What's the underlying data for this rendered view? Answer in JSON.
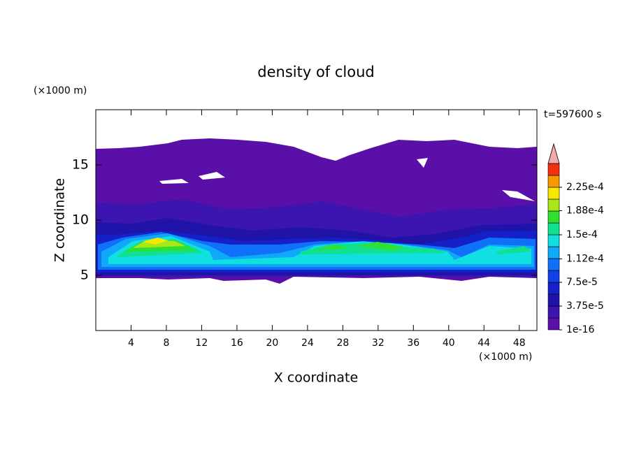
{
  "chart_data": {
    "type": "contour",
    "title": "density of cloud",
    "xlabel": "X coordinate",
    "ylabel": "Z coordinate",
    "x_unit": "(×1000 m)",
    "y_unit": "(×1000 m)",
    "time_label": "t=597600 s",
    "xlim": [
      0,
      50
    ],
    "ylim": [
      0,
      20
    ],
    "xticks": [
      4,
      8,
      12,
      16,
      20,
      24,
      28,
      32,
      36,
      40,
      44,
      48
    ],
    "yticks": [
      5,
      10,
      15
    ],
    "colorbar": {
      "clim": [
        0,
        0.0002625
      ],
      "colors": [
        "#5a10a8",
        "#3c14b0",
        "#2014a8",
        "#1420c8",
        "#1040e8",
        "#1070f8",
        "#10a8f8",
        "#10e0e0",
        "#10e090",
        "#30e030",
        "#a8e818",
        "#f8e800",
        "#f89800",
        "#f03010"
      ],
      "extend_color": "#f4a8a8",
      "ticks": [
        {
          "value": 1e-16,
          "label": "1e-16"
        },
        {
          "value": 3.75e-05,
          "label": "3.75e-5"
        },
        {
          "value": 7.5e-05,
          "label": "7.5e-5"
        },
        {
          "value": 0.000112,
          "label": "1.12e-4"
        },
        {
          "value": 0.00015,
          "label": "1.5e-4"
        },
        {
          "value": 0.000188,
          "label": "1.88e-4"
        },
        {
          "value": 0.000225,
          "label": "2.25e-4"
        }
      ]
    }
  }
}
